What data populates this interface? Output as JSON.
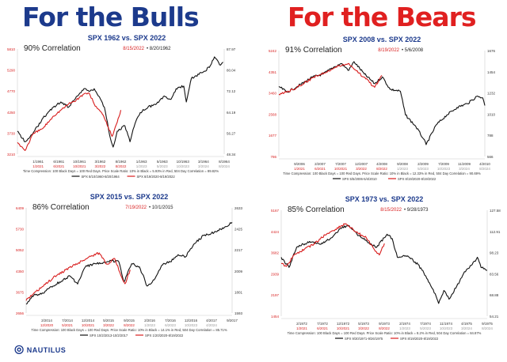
{
  "headers": {
    "left": "For the Bulls",
    "right": "For the Bears"
  },
  "logo": "NAUTILUS",
  "colors": {
    "black_series": "#111111",
    "red_series": "#d81e1e",
    "title": "#1c3a8c"
  },
  "chart_data": [
    {
      "type": "line",
      "title": "SPX 1962 vs. SPX 2022",
      "correlation": "90% Correlation",
      "red_date": "8/15/2022",
      "black_date": "• 8/20/1962",
      "left_ticks": [
        "3210",
        "3730",
        "4250",
        "4770",
        "5290",
        "5810"
      ],
      "left_range": [
        3210,
        5810
      ],
      "right_ticks": [
        "48.34",
        "56.27",
        "64.19",
        "72.12",
        "80.04",
        "87.97"
      ],
      "right_range": [
        48.34,
        87.97
      ],
      "x_black_ticks": [
        "1/1961",
        "6/1961",
        "10/1961",
        "3/1962",
        "8/1962",
        "1/1963",
        "5/1963",
        "10/1963",
        "3/1964",
        "8/1964"
      ],
      "x_red_ticks": [
        "1/2021",
        "6/2021",
        "10/2021",
        "3/2022",
        "8/2022",
        "1/2023",
        "5/2023",
        "10/2023",
        "3/2024",
        "8/2024"
      ],
      "black_xrange": [
        1960.6,
        1964.64
      ],
      "red_xrange": [
        2020.6,
        2024.64
      ],
      "footnote": "Time Compression: 100 Black Days = 100 Red Days. Price Scale Ratio: 10% in Black = 5.93% in Red, 504 Day Correlation = 89.82%",
      "series": [
        {
          "name": "SPX 8/10/1960-8/20/1964",
          "axis": "right",
          "points": [
            [
              1960.6,
              57
            ],
            [
              1960.75,
              53
            ],
            [
              1960.9,
              56
            ],
            [
              1961.1,
              62
            ],
            [
              1961.3,
              66
            ],
            [
              1961.45,
              68
            ],
            [
              1961.6,
              66
            ],
            [
              1961.75,
              70
            ],
            [
              1961.9,
              73
            ],
            [
              1962.0,
              72
            ],
            [
              1962.1,
              73
            ],
            [
              1962.2,
              70
            ],
            [
              1962.3,
              66
            ],
            [
              1962.42,
              54
            ],
            [
              1962.47,
              51
            ],
            [
              1962.55,
              57
            ],
            [
              1962.7,
              59
            ],
            [
              1962.8,
              53
            ],
            [
              1962.9,
              60
            ],
            [
              1963.0,
              64
            ],
            [
              1963.15,
              66
            ],
            [
              1963.3,
              67
            ],
            [
              1963.45,
              70
            ],
            [
              1963.6,
              69
            ],
            [
              1963.7,
              73
            ],
            [
              1963.85,
              74
            ],
            [
              1963.9,
              68
            ],
            [
              1964.0,
              77
            ],
            [
              1964.2,
              79
            ],
            [
              1964.35,
              81
            ],
            [
              1964.45,
              85
            ],
            [
              1964.55,
              82
            ],
            [
              1964.62,
              83
            ]
          ]
        },
        {
          "name": "SPX 8/19/2020-8/19/2022",
          "axis": "left",
          "points": [
            [
              2020.6,
              3500
            ],
            [
              2020.75,
              3300
            ],
            [
              2020.9,
              3700
            ],
            [
              2021.1,
              3850
            ],
            [
              2021.3,
              4150
            ],
            [
              2021.45,
              4300
            ],
            [
              2021.6,
              4450
            ],
            [
              2021.75,
              4550
            ],
            [
              2021.9,
              4700
            ],
            [
              2022.0,
              4720
            ],
            [
              2022.1,
              4450
            ],
            [
              2022.2,
              4300
            ],
            [
              2022.3,
              4100
            ],
            [
              2022.45,
              3650
            ],
            [
              2022.55,
              4000
            ],
            [
              2022.62,
              4300
            ]
          ]
        }
      ]
    },
    {
      "type": "line",
      "title": "SPX 2008 vs. SPX 2022",
      "correlation": "91% Correlation",
      "red_date": "8/19/2022",
      "black_date": "• 5/6/2008",
      "left_ticks": [
        "786",
        "1677",
        "2568",
        "3460",
        "4351",
        "5242"
      ],
      "left_range": [
        786,
        5242
      ],
      "right_ticks": [
        "566",
        "788",
        "1010",
        "1232",
        "1454",
        "1676"
      ],
      "right_range": [
        566,
        1676
      ],
      "x_black_ticks": [
        "9/2006",
        "2/2007",
        "7/2007",
        "12/2007",
        "4/2008",
        "9/2008",
        "2/2009",
        "7/2009",
        "11/2009",
        "4/2010"
      ],
      "x_red_ticks": [
        "1/2021",
        "6/2021",
        "10/2021",
        "3/2022",
        "8/2022",
        "1/2023",
        "5/2023",
        "10/2023",
        "3/2024",
        "8/2024"
      ],
      "black_xrange": [
        2006.34,
        2010.34
      ],
      "red_xrange": [
        2020.64,
        2024.64
      ],
      "footnote": "Time Compression: 100 Black Days = 100 Red Days. Price Scale Ratio: 10% in Black = 12.33% in Red, 504 Day Correlation = 90.69%",
      "series": [
        {
          "name": "SPX 5/5/2006-5/4/2010",
          "axis": "right",
          "points": [
            [
              2006.34,
              1300
            ],
            [
              2006.5,
              1240
            ],
            [
              2006.7,
              1300
            ],
            [
              2007.0,
              1400
            ],
            [
              2007.2,
              1430
            ],
            [
              2007.4,
              1500
            ],
            [
              2007.55,
              1540
            ],
            [
              2007.7,
              1470
            ],
            [
              2007.8,
              1560
            ],
            [
              2008.0,
              1430
            ],
            [
              2008.2,
              1330
            ],
            [
              2008.35,
              1400
            ],
            [
              2008.5,
              1270
            ],
            [
              2008.7,
              1250
            ],
            [
              2008.8,
              1000
            ],
            [
              2009.0,
              880
            ],
            [
              2009.15,
              750
            ],
            [
              2009.2,
              690
            ],
            [
              2009.4,
              900
            ],
            [
              2009.6,
              1000
            ],
            [
              2009.8,
              1080
            ],
            [
              2010.0,
              1120
            ],
            [
              2010.2,
              1200
            ],
            [
              2010.3,
              1180
            ],
            [
              2010.34,
              1100
            ]
          ]
        },
        {
          "name": "SPX 8/19/2020-8/19/2022",
          "axis": "left",
          "points": [
            [
              2020.64,
              3400
            ],
            [
              2020.8,
              3500
            ],
            [
              2021.0,
              3700
            ],
            [
              2021.3,
              4100
            ],
            [
              2021.6,
              4400
            ],
            [
              2021.8,
              4600
            ],
            [
              2022.0,
              4700
            ],
            [
              2022.2,
              4300
            ],
            [
              2022.4,
              3900
            ],
            [
              2022.5,
              3700
            ],
            [
              2022.64,
              4200
            ]
          ]
        }
      ]
    },
    {
      "type": "line",
      "title": "SPX 2015 vs. SPX 2022",
      "correlation": "86% Correlation",
      "red_date": "7/19/2022",
      "black_date": "• 10/1/2015",
      "left_ticks": [
        "2656",
        "3675",
        "4350",
        "5052",
        "5730",
        "6409"
      ],
      "left_range": [
        2656,
        6409
      ],
      "right_ticks": [
        "1593",
        "1801",
        "2009",
        "2217",
        "2425",
        "2633"
      ],
      "right_range": [
        1593,
        2633
      ],
      "x_black_ticks": [
        "2/2014",
        "7/2014",
        "12/2014",
        "5/2015",
        "9/2015",
        "2/2016",
        "7/2016",
        "12/2016",
        "4/2017",
        "9/2017"
      ],
      "x_red_ticks": [
        "12/2020",
        "5/2021",
        "10/2021",
        "3/2022",
        "8/2022",
        "1/2023",
        "6/2023",
        "10/2023",
        "4/2024"
      ],
      "black_xrange": [
        2013.75,
        2017.75
      ],
      "red_xrange": [
        2020.58,
        2024.58
      ],
      "footnote": "Time Compression: 100 Black Days = 100 Red Days. Price Scale Ratio: 10% in Black = 14.1% in Red, 504 Day Correlation = 85.71%",
      "series": [
        {
          "name": "SPX 10/2/2013-10/2/2017",
          "axis": "right",
          "points": [
            [
              2013.75,
              1680
            ],
            [
              2013.9,
              1770
            ],
            [
              2014.1,
              1790
            ],
            [
              2014.2,
              1840
            ],
            [
              2014.4,
              1900
            ],
            [
              2014.6,
              1960
            ],
            [
              2014.75,
              1880
            ],
            [
              2014.9,
              2050
            ],
            [
              2015.1,
              2080
            ],
            [
              2015.4,
              2110
            ],
            [
              2015.55,
              2100
            ],
            [
              2015.65,
              1900
            ],
            [
              2015.8,
              2080
            ],
            [
              2015.95,
              2050
            ],
            [
              2016.1,
              1860
            ],
            [
              2016.2,
              1900
            ],
            [
              2016.4,
              2070
            ],
            [
              2016.55,
              2100
            ],
            [
              2016.7,
              2170
            ],
            [
              2016.85,
              2150
            ],
            [
              2016.9,
              2200
            ],
            [
              2017.0,
              2270
            ],
            [
              2017.2,
              2360
            ],
            [
              2017.4,
              2390
            ],
            [
              2017.6,
              2440
            ],
            [
              2017.75,
              2490
            ]
          ]
        },
        {
          "name": "SPX 1/20/2020-8/19/2022",
          "axis": "left",
          "points": [
            [
              2020.58,
              3100
            ],
            [
              2020.7,
              3300
            ],
            [
              2020.9,
              3600
            ],
            [
              2021.1,
              3900
            ],
            [
              2021.35,
              4200
            ],
            [
              2021.6,
              4450
            ],
            [
              2021.85,
              4700
            ],
            [
              2022.0,
              4800
            ],
            [
              2022.15,
              4400
            ],
            [
              2022.3,
              4600
            ],
            [
              2022.4,
              4100
            ],
            [
              2022.5,
              3700
            ],
            [
              2022.6,
              4200
            ]
          ]
        }
      ]
    },
    {
      "type": "line",
      "title": "SPX 1973 vs. SPX 2022",
      "correlation": "85% Correlation",
      "red_date": "8/15/2022",
      "black_date": "• 9/28/1973",
      "left_ticks": [
        "1454",
        "2197",
        "2939",
        "3682",
        "4424",
        "5167"
      ],
      "left_range": [
        1454,
        5167
      ],
      "right_ticks": [
        "54.21",
        "68.88",
        "83.56",
        "98.23",
        "112.91",
        "127.58"
      ],
      "right_range": [
        54.21,
        127.58
      ],
      "x_black_ticks": [
        "2/1972",
        "7/1972",
        "12/1972",
        "5/1973",
        "9/1973",
        "2/1974",
        "7/1974",
        "11/1974",
        "4/1975",
        "9/1975"
      ],
      "x_red_ticks": [
        "1/2021",
        "6/2021",
        "10/2021",
        "3/2022",
        "8/2022",
        "1/2023",
        "5/2023",
        "10/2023",
        "3/2024",
        "8/2024"
      ],
      "black_xrange": [
        1971.75,
        1975.74
      ],
      "red_xrange": [
        2020.65,
        2024.64
      ],
      "footnote": "Time Compression: 100 Black Days = 100 Red Days. Price Scale Ratio: 10% in Black = 8.2% in Red, 504 Day Correlation = 84.87%",
      "series": [
        {
          "name": "SPX 9/30/1971-9/26/1975",
          "axis": "right",
          "points": [
            [
              1971.75,
              95
            ],
            [
              1971.9,
              88
            ],
            [
              1972.05,
              102
            ],
            [
              1972.3,
              106
            ],
            [
              1972.5,
              104
            ],
            [
              1972.7,
              108
            ],
            [
              1972.9,
              115
            ],
            [
              1973.05,
              117
            ],
            [
              1973.25,
              110
            ],
            [
              1973.45,
              105
            ],
            [
              1973.6,
              102
            ],
            [
              1973.8,
              111
            ],
            [
              1973.9,
              108
            ],
            [
              1974.0,
              95
            ],
            [
              1974.2,
              96
            ],
            [
              1974.4,
              90
            ],
            [
              1974.55,
              82
            ],
            [
              1974.75,
              68
            ],
            [
              1974.8,
              63
            ],
            [
              1974.9,
              72
            ],
            [
              1975.0,
              66
            ],
            [
              1975.15,
              75
            ],
            [
              1975.3,
              85
            ],
            [
              1975.45,
              90
            ],
            [
              1975.55,
              95
            ],
            [
              1975.62,
              88
            ],
            [
              1975.74,
              86
            ]
          ]
        },
        {
          "name": "SPX 8/19/2020-8/19/2022",
          "axis": "left",
          "points": [
            [
              2020.65,
              3300
            ],
            [
              2020.75,
              3200
            ],
            [
              2020.9,
              3600
            ],
            [
              2021.1,
              3800
            ],
            [
              2021.3,
              4000
            ],
            [
              2021.5,
              4300
            ],
            [
              2021.7,
              4500
            ],
            [
              2021.9,
              4700
            ],
            [
              2022.1,
              4400
            ],
            [
              2022.3,
              4200
            ],
            [
              2022.45,
              3800
            ],
            [
              2022.55,
              3600
            ],
            [
              2022.65,
              4000
            ]
          ]
        }
      ]
    }
  ]
}
